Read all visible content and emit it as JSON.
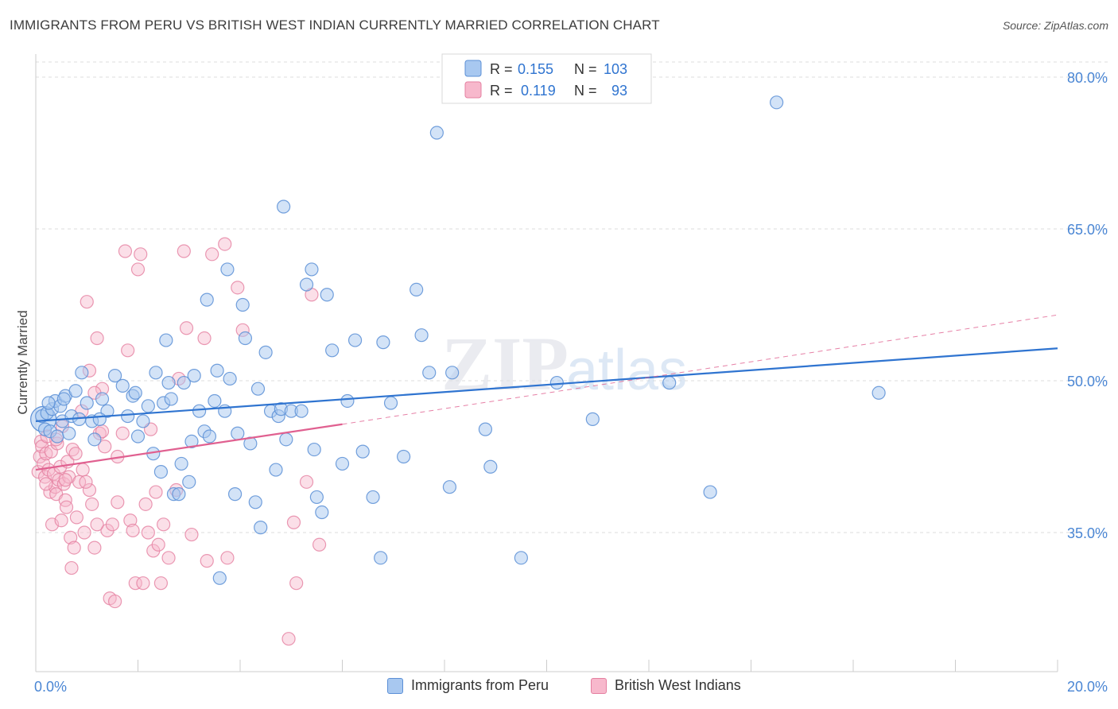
{
  "header": {
    "title": "IMMIGRANTS FROM PERU VS BRITISH WEST INDIAN CURRENTLY MARRIED CORRELATION CHART",
    "source": "Source: ZipAtlas.com"
  },
  "watermark": {
    "zip": "ZIP",
    "atlas": "atlas"
  },
  "legend_top": {
    "rows": [
      {
        "r_label": "R =",
        "r_value": "0.155",
        "n_label": "N =",
        "n_value": "103"
      },
      {
        "r_label": "R =",
        "r_value": "0.119",
        "n_label": "N =",
        "n_value": "93"
      }
    ]
  },
  "legend_bottom": {
    "items": [
      {
        "label": "Immigrants from Peru"
      },
      {
        "label": "British West Indians"
      }
    ]
  },
  "colors": {
    "blue_fill": "#a8c8f0",
    "blue_stroke": "#5b8fd6",
    "blue_line": "#2f74d0",
    "pink_fill": "#f7b8cc",
    "pink_stroke": "#e57fa0",
    "pink_line": "#e06090",
    "axis_text": "#4a86d4",
    "grid": "#dddddd"
  },
  "chart_data": {
    "type": "scatter",
    "title": "IMMIGRANTS FROM PERU VS BRITISH WEST INDIAN CURRENTLY MARRIED CORRELATION CHART",
    "xlabel": "",
    "ylabel": "Currently Married",
    "xlim": [
      0,
      20
    ],
    "ylim": [
      20,
      82
    ],
    "x_tick_labels": [
      "0.0%",
      "20.0%"
    ],
    "y_ticks": [
      35,
      50,
      65,
      80
    ],
    "y_tick_labels": [
      "35.0%",
      "50.0%",
      "65.0%",
      "80.0%"
    ],
    "grid": true,
    "legend_position": "top-center",
    "series": [
      {
        "name": "Immigrants from Peru",
        "color": "#a8c8f0",
        "R": 0.155,
        "N": 103,
        "trend": {
          "x0": 0.0,
          "y0": 46.0,
          "x1": 20.0,
          "y1": 53.2
        },
        "points": [
          [
            0.12,
            46.5
          ],
          [
            0.18,
            45.2
          ],
          [
            0.22,
            46.8
          ],
          [
            0.28,
            45.0
          ],
          [
            0.32,
            47.2
          ],
          [
            0.38,
            48.0
          ],
          [
            0.42,
            44.5
          ],
          [
            0.48,
            47.5
          ],
          [
            0.52,
            46.0
          ],
          [
            0.58,
            48.5
          ],
          [
            0.65,
            44.8
          ],
          [
            0.7,
            46.5
          ],
          [
            0.78,
            49.0
          ],
          [
            0.85,
            46.2
          ],
          [
            0.9,
            50.8
          ],
          [
            1.0,
            47.8
          ],
          [
            1.1,
            46.0
          ],
          [
            1.15,
            44.2
          ],
          [
            1.3,
            48.2
          ],
          [
            1.4,
            47.0
          ],
          [
            1.55,
            50.5
          ],
          [
            1.7,
            49.5
          ],
          [
            1.8,
            46.5
          ],
          [
            1.9,
            48.5
          ],
          [
            2.0,
            44.5
          ],
          [
            2.1,
            46.0
          ],
          [
            2.2,
            47.5
          ],
          [
            2.3,
            42.8
          ],
          [
            2.35,
            50.8
          ],
          [
            2.45,
            41.0
          ],
          [
            2.5,
            47.8
          ],
          [
            2.55,
            54.0
          ],
          [
            2.6,
            49.8
          ],
          [
            2.7,
            38.8
          ],
          [
            2.8,
            38.8
          ],
          [
            2.85,
            41.8
          ],
          [
            2.9,
            49.8
          ],
          [
            3.0,
            40.0
          ],
          [
            3.05,
            44.0
          ],
          [
            3.1,
            50.5
          ],
          [
            3.2,
            47.0
          ],
          [
            3.3,
            45.0
          ],
          [
            3.35,
            58.0
          ],
          [
            3.4,
            44.5
          ],
          [
            3.5,
            48.0
          ],
          [
            3.55,
            51.0
          ],
          [
            3.6,
            30.5
          ],
          [
            3.7,
            47.0
          ],
          [
            3.75,
            61.0
          ],
          [
            3.8,
            50.2
          ],
          [
            3.9,
            38.8
          ],
          [
            3.95,
            44.8
          ],
          [
            4.05,
            57.5
          ],
          [
            4.1,
            54.2
          ],
          [
            4.2,
            43.8
          ],
          [
            4.3,
            38.0
          ],
          [
            4.35,
            49.2
          ],
          [
            4.4,
            35.5
          ],
          [
            4.5,
            52.8
          ],
          [
            4.6,
            47.0
          ],
          [
            4.7,
            41.2
          ],
          [
            4.75,
            46.5
          ],
          [
            4.8,
            47.2
          ],
          [
            4.85,
            67.2
          ],
          [
            4.9,
            44.2
          ],
          [
            5.0,
            47.0
          ],
          [
            5.3,
            59.5
          ],
          [
            5.4,
            61.0
          ],
          [
            5.45,
            43.2
          ],
          [
            5.5,
            38.5
          ],
          [
            5.6,
            37.0
          ],
          [
            5.7,
            58.5
          ],
          [
            5.8,
            53.0
          ],
          [
            6.0,
            41.8
          ],
          [
            6.1,
            48.0
          ],
          [
            6.25,
            54.0
          ],
          [
            6.6,
            38.5
          ],
          [
            6.75,
            32.5
          ],
          [
            6.8,
            53.8
          ],
          [
            6.95,
            47.8
          ],
          [
            7.45,
            59.0
          ],
          [
            7.55,
            54.5
          ],
          [
            7.7,
            50.8
          ],
          [
            7.85,
            74.5
          ],
          [
            8.15,
            50.8
          ],
          [
            8.1,
            39.5
          ],
          [
            8.8,
            45.2
          ],
          [
            8.9,
            41.5
          ],
          [
            9.5,
            32.5
          ],
          [
            10.2,
            49.8
          ],
          [
            10.9,
            46.2
          ],
          [
            12.4,
            49.8
          ],
          [
            13.2,
            39.0
          ],
          [
            14.5,
            77.5
          ],
          [
            16.5,
            48.8
          ],
          [
            0.25,
            47.8
          ],
          [
            0.55,
            48.2
          ],
          [
            1.25,
            46.2
          ],
          [
            1.95,
            48.8
          ],
          [
            2.65,
            48.2
          ],
          [
            5.2,
            47.0
          ],
          [
            6.4,
            43.0
          ],
          [
            7.2,
            42.5
          ]
        ]
      },
      {
        "name": "British West Indians",
        "color": "#f7b8cc",
        "R": 0.119,
        "N": 93,
        "trend_solid": {
          "x0": 0.0,
          "y0": 41.2,
          "x1": 6.0,
          "y1": 45.7
        },
        "trend_dashed": {
          "x0": 6.0,
          "y0": 45.7,
          "x1": 20.0,
          "y1": 56.5
        },
        "points": [
          [
            0.05,
            41.0
          ],
          [
            0.08,
            42.5
          ],
          [
            0.1,
            44.0
          ],
          [
            0.12,
            43.5
          ],
          [
            0.15,
            41.8
          ],
          [
            0.18,
            40.5
          ],
          [
            0.2,
            42.8
          ],
          [
            0.22,
            44.5
          ],
          [
            0.25,
            41.2
          ],
          [
            0.28,
            39.0
          ],
          [
            0.3,
            43.0
          ],
          [
            0.32,
            35.8
          ],
          [
            0.35,
            40.8
          ],
          [
            0.38,
            39.5
          ],
          [
            0.4,
            38.8
          ],
          [
            0.42,
            43.8
          ],
          [
            0.45,
            40.2
          ],
          [
            0.48,
            41.5
          ],
          [
            0.5,
            36.2
          ],
          [
            0.52,
            45.5
          ],
          [
            0.55,
            39.8
          ],
          [
            0.58,
            38.2
          ],
          [
            0.6,
            37.5
          ],
          [
            0.62,
            42.0
          ],
          [
            0.65,
            40.5
          ],
          [
            0.68,
            34.5
          ],
          [
            0.7,
            31.5
          ],
          [
            0.72,
            43.2
          ],
          [
            0.75,
            33.5
          ],
          [
            0.78,
            42.8
          ],
          [
            0.8,
            36.5
          ],
          [
            0.85,
            40.0
          ],
          [
            0.9,
            47.0
          ],
          [
            0.92,
            41.2
          ],
          [
            0.95,
            35.0
          ],
          [
            1.0,
            57.8
          ],
          [
            1.05,
            39.2
          ],
          [
            1.1,
            37.8
          ],
          [
            1.15,
            33.5
          ],
          [
            1.2,
            54.2
          ],
          [
            1.25,
            44.8
          ],
          [
            1.3,
            49.2
          ],
          [
            1.35,
            43.5
          ],
          [
            1.4,
            35.2
          ],
          [
            1.45,
            28.5
          ],
          [
            1.5,
            35.8
          ],
          [
            1.55,
            28.2
          ],
          [
            1.6,
            38.0
          ],
          [
            1.7,
            44.8
          ],
          [
            1.75,
            62.8
          ],
          [
            1.8,
            53.0
          ],
          [
            1.85,
            36.2
          ],
          [
            1.9,
            35.2
          ],
          [
            1.95,
            30.0
          ],
          [
            2.0,
            61.0
          ],
          [
            2.05,
            62.5
          ],
          [
            2.1,
            30.0
          ],
          [
            2.15,
            37.8
          ],
          [
            2.2,
            35.0
          ],
          [
            2.25,
            45.2
          ],
          [
            2.3,
            33.2
          ],
          [
            2.35,
            39.0
          ],
          [
            2.4,
            33.8
          ],
          [
            2.5,
            35.8
          ],
          [
            2.6,
            32.5
          ],
          [
            2.75,
            39.2
          ],
          [
            2.8,
            50.2
          ],
          [
            2.9,
            62.8
          ],
          [
            2.95,
            55.2
          ],
          [
            3.05,
            34.8
          ],
          [
            3.3,
            54.2
          ],
          [
            3.35,
            32.2
          ],
          [
            3.45,
            62.5
          ],
          [
            3.7,
            63.5
          ],
          [
            3.75,
            32.5
          ],
          [
            3.95,
            59.2
          ],
          [
            4.05,
            55.0
          ],
          [
            4.95,
            24.5
          ],
          [
            5.05,
            36.0
          ],
          [
            5.1,
            30.0
          ],
          [
            5.3,
            40.0
          ],
          [
            5.4,
            58.5
          ],
          [
            5.55,
            33.8
          ],
          [
            1.05,
            51.0
          ],
          [
            1.15,
            48.8
          ],
          [
            1.3,
            45.0
          ],
          [
            1.6,
            42.5
          ],
          [
            0.4,
            44.2
          ],
          [
            0.58,
            40.2
          ],
          [
            0.2,
            39.8
          ],
          [
            0.98,
            40.0
          ],
          [
            1.2,
            35.8
          ],
          [
            2.45,
            30.0
          ]
        ]
      }
    ]
  }
}
